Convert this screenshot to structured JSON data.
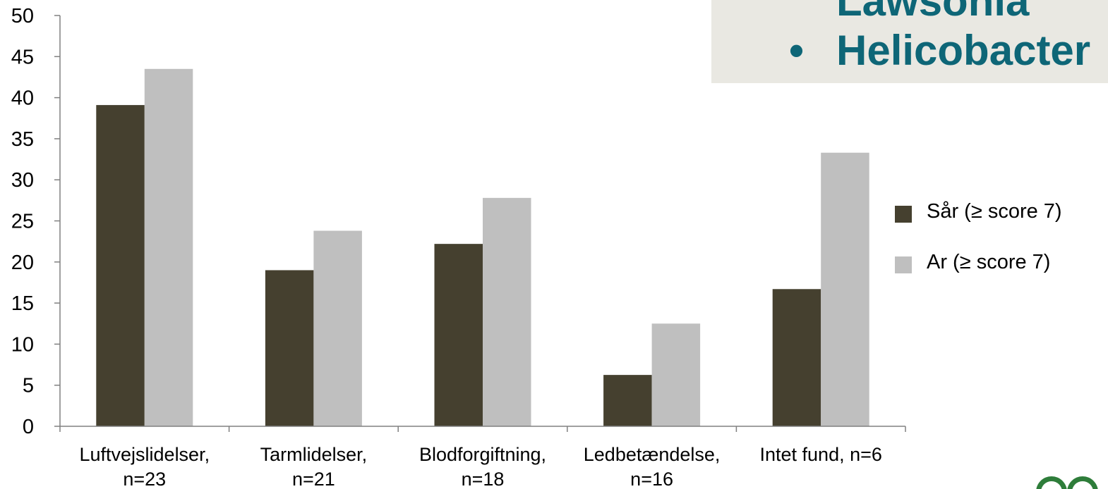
{
  "chart_data": {
    "type": "bar",
    "categories": [
      [
        "Luftvejslidelser,",
        "n=23"
      ],
      [
        "Tarmlidelser,",
        "n=21"
      ],
      [
        "Blodforgiftning,",
        "n=18"
      ],
      [
        "Ledbetændelse,",
        "n=16"
      ],
      [
        "Intet fund, n=6"
      ]
    ],
    "series": [
      {
        "name": "Sår (≥ score 7)",
        "color": "#45402f",
        "values": [
          39.1,
          19.0,
          22.2,
          6.25,
          16.7
        ]
      },
      {
        "name": "Ar (≥ score 7)",
        "color": "#bfbfbf",
        "values": [
          43.5,
          23.8,
          27.8,
          12.5,
          33.3
        ]
      }
    ],
    "ylim": [
      0,
      50
    ],
    "yticks": [
      0,
      5,
      10,
      15,
      20,
      25,
      30,
      35,
      40,
      45,
      50
    ],
    "grid": false,
    "legend_position": "right",
    "title": "",
    "xlabel": "",
    "ylabel": ""
  },
  "overlay": {
    "items": [
      "Lawsonia",
      "Helicobacter"
    ],
    "bullet": "•",
    "text_color": "#0e6677",
    "background": "#e9e8e2"
  },
  "logo": {
    "icon": "seal-logo-icon",
    "color": "#2e7d3a"
  }
}
